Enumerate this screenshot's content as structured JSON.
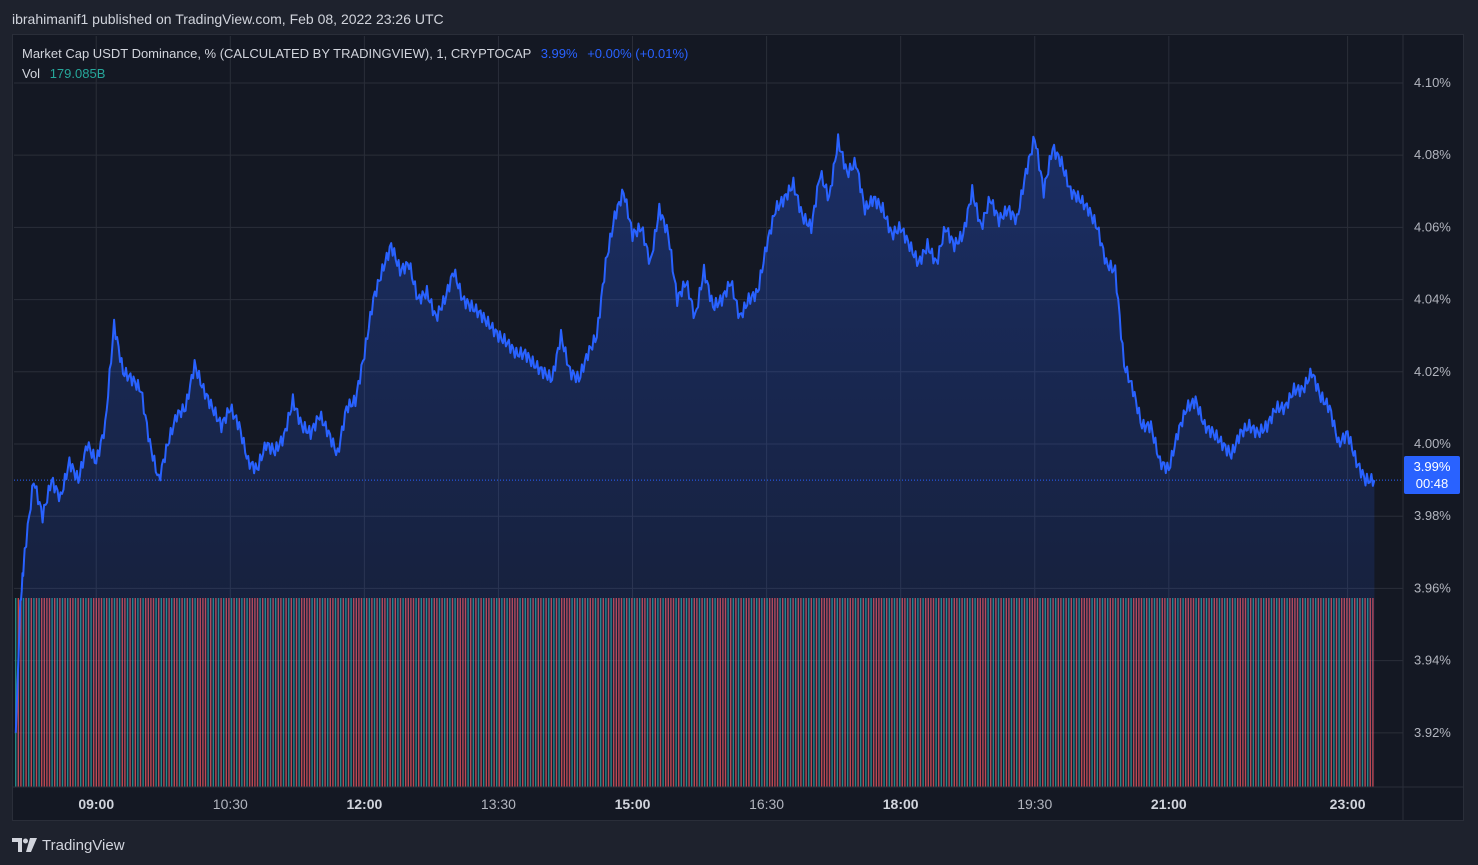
{
  "header": {
    "published_text": "ibrahimanif1 published on TradingView.com, Feb 08, 2022 23:26 UTC"
  },
  "legend": {
    "symbol": "Market Cap USDT Dominance, % (CALCULATED BY TRADINGVIEW), 1, CRYPTOCAP",
    "last_value": "3.99%",
    "change": "+0.00% (+0.01%)",
    "vol_label": "Vol",
    "vol_value": "179.085B"
  },
  "price_tag": {
    "price": "3.99%",
    "countdown": "00:48"
  },
  "footer": {
    "brand": "TradingView"
  },
  "colors": {
    "line": "#2962ff",
    "volume_up": "#26a69a",
    "volume_down": "#ef5350",
    "background": "#141823",
    "grid": "#2a2e39"
  },
  "chart_data": {
    "type": "area",
    "x_tick_labels": [
      "09:00",
      "10:30",
      "12:00",
      "13:30",
      "15:00",
      "16:30",
      "18:00",
      "19:30",
      "21:00",
      "23:00"
    ],
    "x_tick_bold": [
      true,
      false,
      true,
      false,
      true,
      false,
      true,
      false,
      true,
      true
    ],
    "x_tick_hours": [
      9.0,
      10.5,
      12.0,
      13.5,
      15.0,
      16.5,
      18.0,
      19.5,
      21.0,
      23.0
    ],
    "y_tick_labels": [
      "4.10%",
      "4.08%",
      "4.06%",
      "4.04%",
      "4.02%",
      "4.00%",
      "3.98%",
      "3.96%",
      "3.94%",
      "3.92%"
    ],
    "ylim": [
      3.905,
      4.113
    ],
    "xlim": [
      8.08,
      23.62
    ],
    "last_price": 3.99,
    "series": [
      {
        "name": "Market Cap USDT Dominance",
        "points": [
          [
            8.1,
            3.92
          ],
          [
            8.15,
            3.955
          ],
          [
            8.2,
            3.97
          ],
          [
            8.3,
            3.99
          ],
          [
            8.4,
            3.98
          ],
          [
            8.5,
            3.99
          ],
          [
            8.6,
            3.985
          ],
          [
            8.7,
            3.995
          ],
          [
            8.8,
            3.99
          ],
          [
            8.9,
            4.0
          ],
          [
            9.0,
            3.995
          ],
          [
            9.1,
            4.005
          ],
          [
            9.2,
            4.033
          ],
          [
            9.3,
            4.02
          ],
          [
            9.4,
            4.018
          ],
          [
            9.5,
            4.015
          ],
          [
            9.6,
            4.0
          ],
          [
            9.7,
            3.99
          ],
          [
            9.8,
            4.0
          ],
          [
            9.9,
            4.008
          ],
          [
            10.0,
            4.01
          ],
          [
            10.1,
            4.022
          ],
          [
            10.2,
            4.015
          ],
          [
            10.3,
            4.01
          ],
          [
            10.4,
            4.005
          ],
          [
            10.5,
            4.01
          ],
          [
            10.6,
            4.005
          ],
          [
            10.7,
            3.995
          ],
          [
            10.8,
            3.993
          ],
          [
            10.9,
            4.0
          ],
          [
            11.0,
            3.998
          ],
          [
            11.1,
            4.002
          ],
          [
            11.2,
            4.012
          ],
          [
            11.3,
            4.005
          ],
          [
            11.4,
            4.003
          ],
          [
            11.5,
            4.008
          ],
          [
            11.6,
            4.003
          ],
          [
            11.7,
            3.997
          ],
          [
            11.8,
            4.01
          ],
          [
            11.9,
            4.012
          ],
          [
            12.0,
            4.025
          ],
          [
            12.1,
            4.04
          ],
          [
            12.2,
            4.048
          ],
          [
            12.3,
            4.055
          ],
          [
            12.4,
            4.048
          ],
          [
            12.5,
            4.05
          ],
          [
            12.6,
            4.04
          ],
          [
            12.7,
            4.042
          ],
          [
            12.8,
            4.035
          ],
          [
            12.9,
            4.04
          ],
          [
            13.0,
            4.048
          ],
          [
            13.1,
            4.04
          ],
          [
            13.2,
            4.038
          ],
          [
            13.3,
            4.036
          ],
          [
            13.4,
            4.033
          ],
          [
            13.5,
            4.03
          ],
          [
            13.6,
            4.028
          ],
          [
            13.7,
            4.025
          ],
          [
            13.8,
            4.025
          ],
          [
            13.9,
            4.022
          ],
          [
            14.0,
            4.02
          ],
          [
            14.1,
            4.018
          ],
          [
            14.2,
            4.03
          ],
          [
            14.3,
            4.02
          ],
          [
            14.4,
            4.018
          ],
          [
            14.5,
            4.025
          ],
          [
            14.6,
            4.03
          ],
          [
            14.7,
            4.05
          ],
          [
            14.8,
            4.063
          ],
          [
            14.9,
            4.07
          ],
          [
            15.0,
            4.058
          ],
          [
            15.1,
            4.06
          ],
          [
            15.2,
            4.05
          ],
          [
            15.3,
            4.065
          ],
          [
            15.4,
            4.058
          ],
          [
            15.5,
            4.04
          ],
          [
            15.6,
            4.045
          ],
          [
            15.7,
            4.035
          ],
          [
            15.8,
            4.048
          ],
          [
            15.9,
            4.038
          ],
          [
            16.0,
            4.04
          ],
          [
            16.1,
            4.045
          ],
          [
            16.2,
            4.035
          ],
          [
            16.3,
            4.04
          ],
          [
            16.4,
            4.042
          ],
          [
            16.5,
            4.055
          ],
          [
            16.6,
            4.065
          ],
          [
            16.7,
            4.068
          ],
          [
            16.8,
            4.072
          ],
          [
            16.9,
            4.063
          ],
          [
            17.0,
            4.06
          ],
          [
            17.1,
            4.075
          ],
          [
            17.2,
            4.068
          ],
          [
            17.3,
            4.084
          ],
          [
            17.4,
            4.075
          ],
          [
            17.5,
            4.078
          ],
          [
            17.6,
            4.065
          ],
          [
            17.7,
            4.068
          ],
          [
            17.8,
            4.065
          ],
          [
            17.9,
            4.058
          ],
          [
            18.0,
            4.06
          ],
          [
            18.1,
            4.055
          ],
          [
            18.2,
            4.05
          ],
          [
            18.3,
            4.055
          ],
          [
            18.4,
            4.05
          ],
          [
            18.5,
            4.06
          ],
          [
            18.6,
            4.055
          ],
          [
            18.7,
            4.058
          ],
          [
            18.8,
            4.07
          ],
          [
            18.9,
            4.06
          ],
          [
            19.0,
            4.068
          ],
          [
            19.1,
            4.062
          ],
          [
            19.2,
            4.065
          ],
          [
            19.3,
            4.062
          ],
          [
            19.4,
            4.075
          ],
          [
            19.5,
            4.085
          ],
          [
            19.6,
            4.07
          ],
          [
            19.7,
            4.082
          ],
          [
            19.8,
            4.078
          ],
          [
            19.9,
            4.07
          ],
          [
            20.0,
            4.068
          ],
          [
            20.1,
            4.065
          ],
          [
            20.2,
            4.06
          ],
          [
            20.3,
            4.05
          ],
          [
            20.4,
            4.048
          ],
          [
            20.5,
            4.022
          ],
          [
            20.6,
            4.015
          ],
          [
            20.7,
            4.005
          ],
          [
            20.8,
            4.005
          ],
          [
            20.9,
            3.995
          ],
          [
            21.0,
            3.993
          ],
          [
            21.1,
            4.003
          ],
          [
            21.2,
            4.01
          ],
          [
            21.3,
            4.012
          ],
          [
            21.4,
            4.005
          ],
          [
            21.5,
            4.003
          ],
          [
            21.6,
            4.0
          ],
          [
            21.7,
            3.997
          ],
          [
            21.8,
            4.003
          ],
          [
            21.9,
            4.005
          ],
          [
            22.0,
            4.003
          ],
          [
            22.1,
            4.005
          ],
          [
            22.2,
            4.01
          ],
          [
            22.3,
            4.01
          ],
          [
            22.4,
            4.015
          ],
          [
            22.5,
            4.015
          ],
          [
            22.6,
            4.02
          ],
          [
            22.7,
            4.013
          ],
          [
            22.8,
            4.01
          ],
          [
            22.9,
            4.0
          ],
          [
            23.0,
            4.003
          ],
          [
            23.1,
            3.995
          ],
          [
            23.2,
            3.99
          ],
          [
            23.3,
            3.99
          ]
        ]
      }
    ],
    "volume_note": "dense alternating green/red volume bars across full range"
  }
}
